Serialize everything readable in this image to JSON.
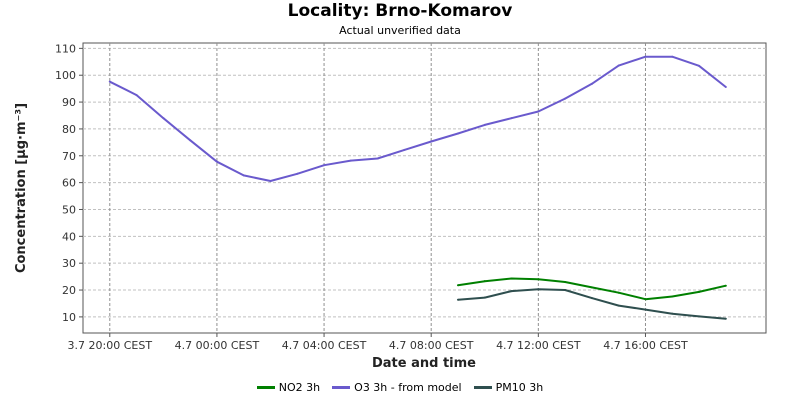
{
  "chart_data": {
    "type": "line",
    "title": "Locality: Brno-Komarov",
    "subtitle": "Actual unverified data",
    "xlabel": "Date and time",
    "ylabel": "Concentration [µg·m⁻³]",
    "ylim": [
      4,
      112
    ],
    "yticks": [
      10,
      20,
      30,
      40,
      50,
      60,
      70,
      80,
      90,
      100,
      110
    ],
    "xlim": [
      -1,
      24.5
    ],
    "xticks": [
      {
        "x": 0,
        "label": "3.7 20:00 CEST"
      },
      {
        "x": 4,
        "label": "4.7 00:00 CEST"
      },
      {
        "x": 8,
        "label": "4.7 04:00 CEST"
      },
      {
        "x": 12,
        "label": "4.7 08:00 CEST"
      },
      {
        "x": 16,
        "label": "4.7 12:00 CEST"
      },
      {
        "x": 20,
        "label": "4.7 16:00 CEST"
      }
    ],
    "grid": true,
    "legend_position": "bottom",
    "series": [
      {
        "name": "NO2 3h",
        "color": "#008000",
        "x": [
          13,
          14,
          15,
          16,
          17,
          18,
          19,
          20,
          21,
          22,
          23
        ],
        "y": [
          21.8,
          23.3,
          24.3,
          24.0,
          23.0,
          21.0,
          19.0,
          16.6,
          17.6,
          19.3,
          21.6
        ]
      },
      {
        "name": "O3 3h - from model",
        "color": "#6a5acd",
        "x": [
          0,
          1,
          2,
          3,
          4,
          5,
          6,
          7,
          8,
          9,
          10,
          11,
          12,
          13,
          14,
          15,
          16,
          17,
          18,
          19,
          20,
          21,
          22,
          23
        ],
        "y": [
          97.6,
          92.6,
          84.0,
          75.8,
          67.8,
          62.7,
          60.6,
          63.3,
          66.5,
          68.2,
          69.0,
          72.2,
          75.3,
          78.3,
          81.5,
          84.0,
          86.5,
          91.3,
          96.8,
          103.6,
          106.9,
          106.9,
          103.5,
          95.6
        ]
      },
      {
        "name": "PM10 3h",
        "color": "#2f4f4f",
        "x": [
          13,
          14,
          15,
          16,
          17,
          18,
          19,
          20,
          21,
          22,
          23
        ],
        "y": [
          16.4,
          17.2,
          19.6,
          20.3,
          20.0,
          17.0,
          14.2,
          12.7,
          11.2,
          10.2,
          9.3
        ]
      }
    ]
  }
}
